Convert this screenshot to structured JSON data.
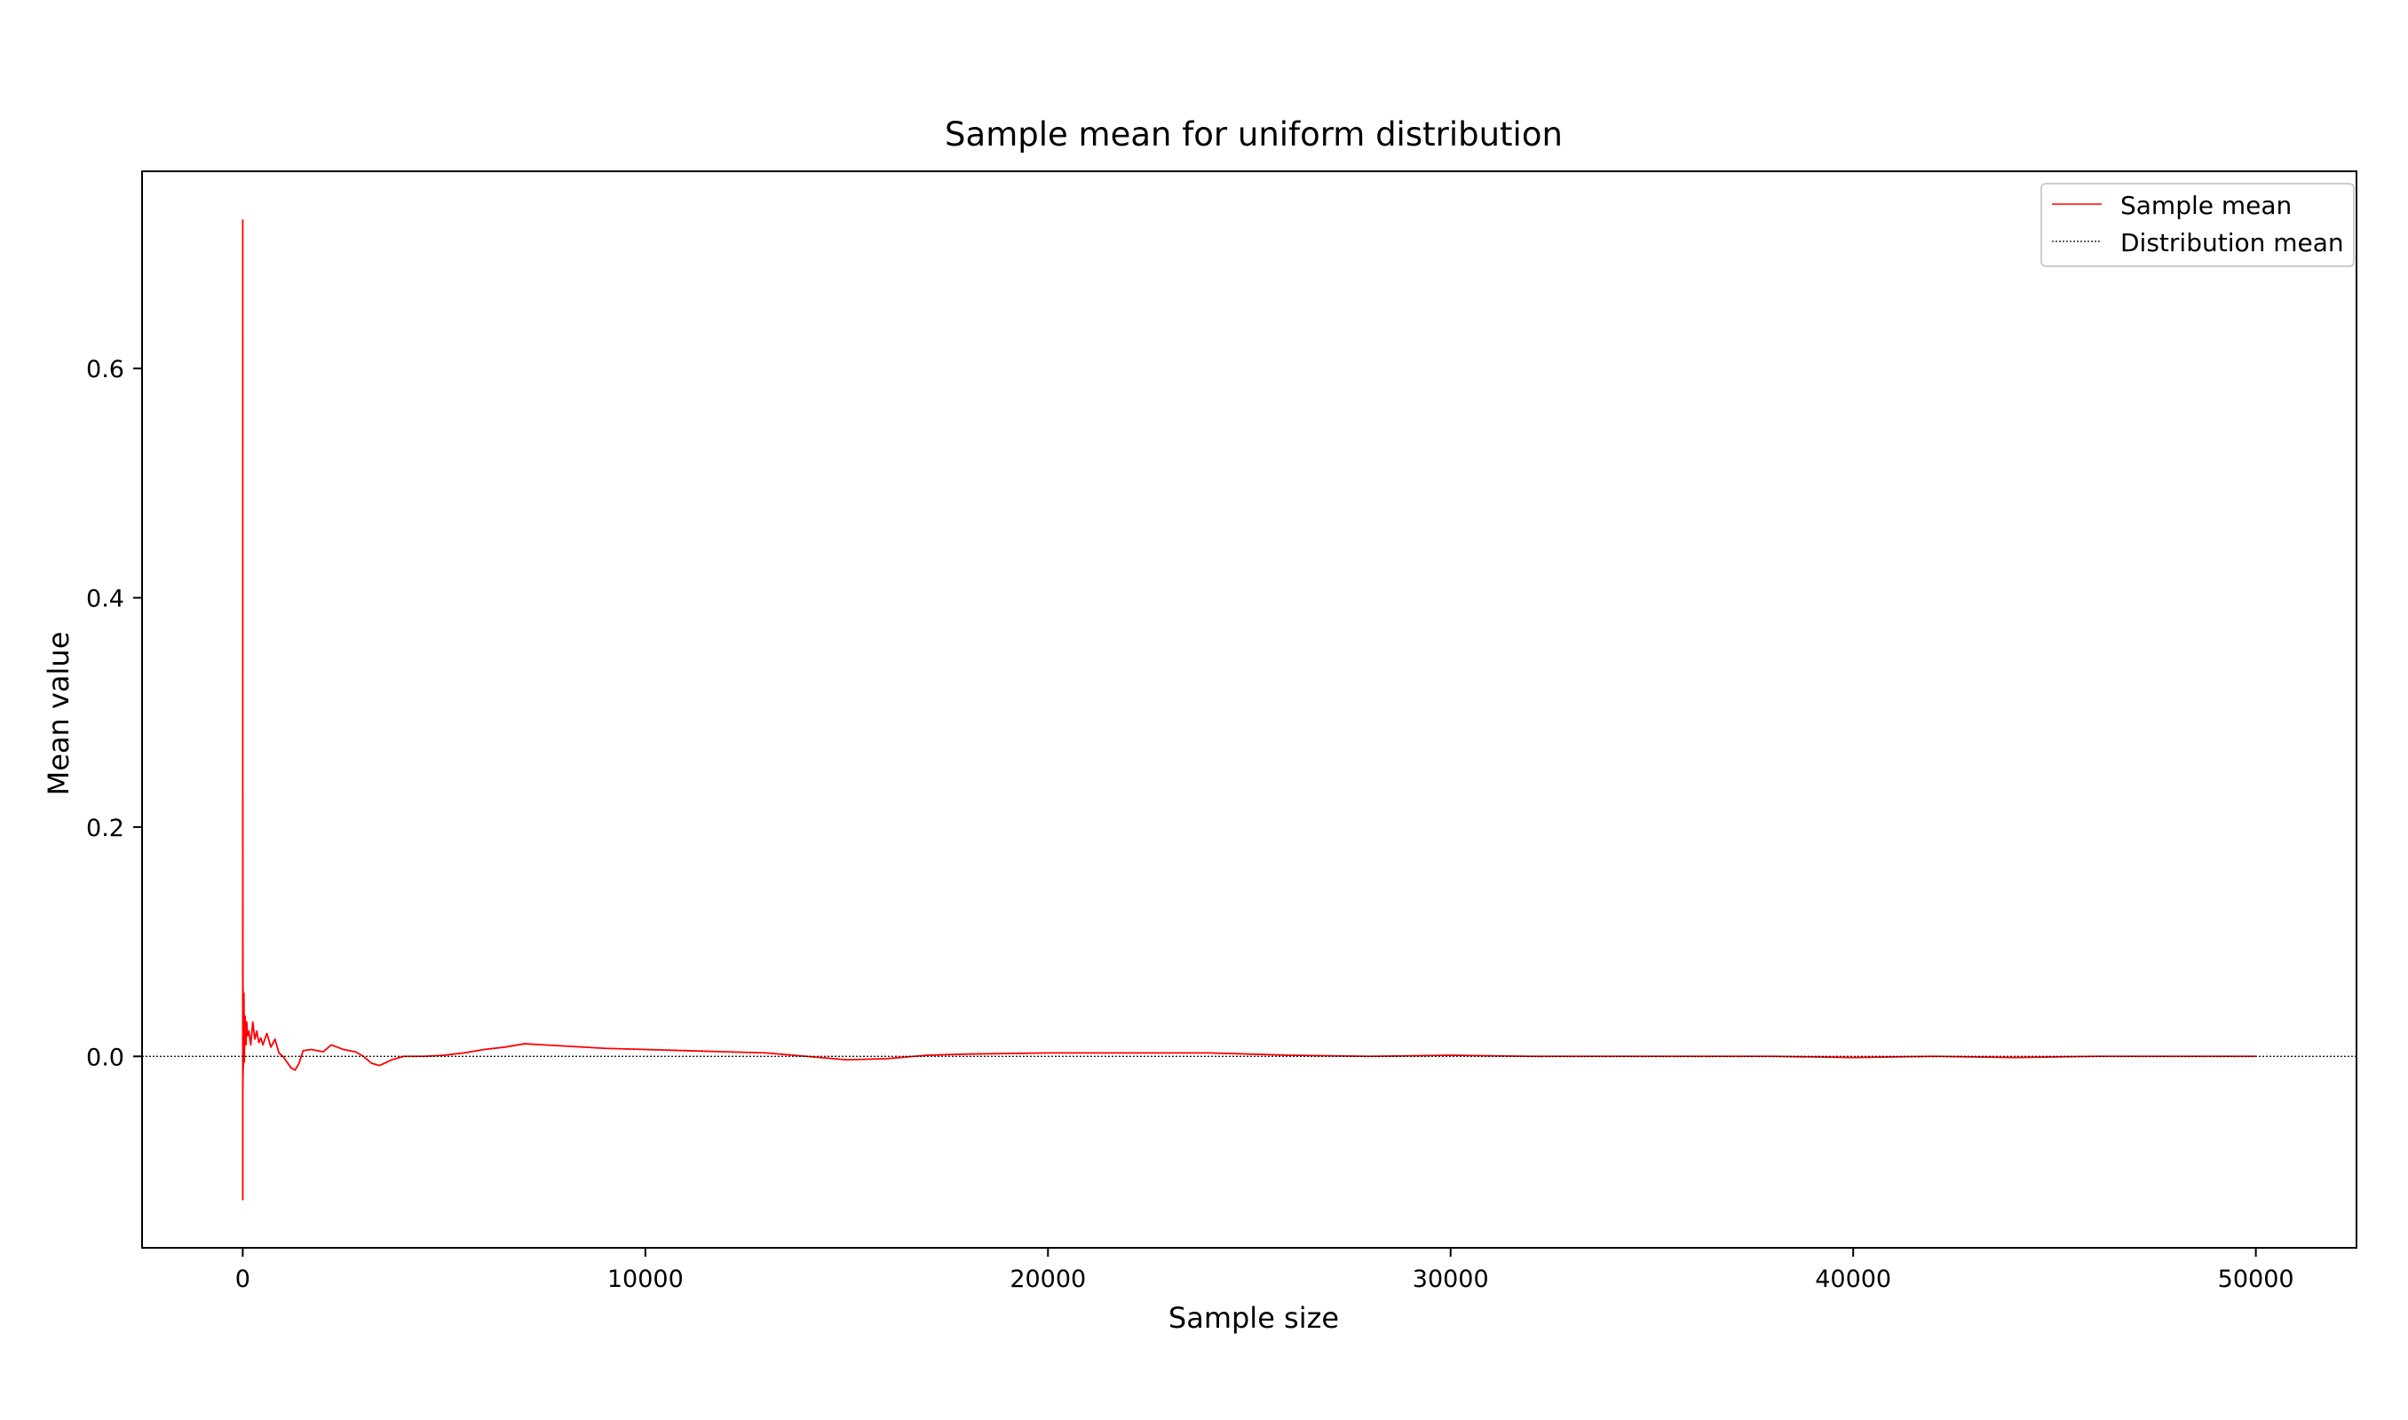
{
  "chart_data": {
    "type": "line",
    "title": "Sample mean for uniform distribution",
    "xlabel": "Sample size",
    "ylabel": "Mean value",
    "xlim": [
      -2500,
      52500
    ],
    "ylim": [
      -0.167,
      0.772
    ],
    "xticks": [
      0,
      10000,
      20000,
      30000,
      40000,
      50000
    ],
    "xtick_labels": [
      "0",
      "10000",
      "20000",
      "30000",
      "40000",
      "50000"
    ],
    "yticks": [
      0.0,
      0.2,
      0.4,
      0.6
    ],
    "ytick_labels": [
      "0.0",
      "0.2",
      "0.4",
      "0.6"
    ],
    "grid": false,
    "legend": {
      "placement": "top-right",
      "entries": [
        "Sample mean",
        "Distribution mean"
      ]
    },
    "series": [
      {
        "name": "Sample mean",
        "color": "#ff0000",
        "style": "solid",
        "x": [
          1,
          2,
          3,
          4,
          5,
          6,
          8,
          10,
          12,
          15,
          20,
          25,
          30,
          40,
          50,
          60,
          80,
          100,
          120,
          150,
          200,
          250,
          300,
          350,
          400,
          450,
          500,
          600,
          700,
          800,
          900,
          1000,
          1100,
          1200,
          1300,
          1400,
          1500,
          1700,
          2000,
          2200,
          2500,
          2800,
          3000,
          3200,
          3400,
          3700,
          4000,
          4500,
          5000,
          5500,
          6000,
          6500,
          7000,
          7500,
          8000,
          9000,
          10000,
          11000,
          12000,
          13000,
          14000,
          15000,
          16000,
          17000,
          18000,
          20000,
          22000,
          24000,
          25000,
          26000,
          28000,
          30000,
          32000,
          34000,
          36000,
          38000,
          40000,
          42000,
          44000,
          46000,
          48000,
          50000
        ],
        "values": [
          0.73,
          -0.125,
          0.23,
          -0.03,
          0.095,
          -0.02,
          0.06,
          -0.015,
          0.04,
          -0.01,
          0.03,
          0.005,
          0.055,
          -0.005,
          0.025,
          0.035,
          0.01,
          0.03,
          0.018,
          0.022,
          0.01,
          0.03,
          0.015,
          0.022,
          0.012,
          0.016,
          0.01,
          0.02,
          0.008,
          0.015,
          0.003,
          0.0,
          -0.005,
          -0.01,
          -0.012,
          -0.006,
          0.005,
          0.006,
          0.004,
          0.01,
          0.006,
          0.004,
          0.0,
          -0.006,
          -0.008,
          -0.003,
          0.0,
          0.0,
          0.001,
          0.003,
          0.006,
          0.008,
          0.011,
          0.01,
          0.009,
          0.007,
          0.006,
          0.005,
          0.004,
          0.003,
          0.0,
          -0.003,
          -0.002,
          0.001,
          0.002,
          0.003,
          0.003,
          0.003,
          0.002,
          0.001,
          0.0,
          0.001,
          0.0,
          0.0,
          0.0,
          0.0,
          -0.001,
          0.0,
          -0.001,
          0.0,
          0.0,
          0.0
        ]
      },
      {
        "name": "Distribution mean",
        "color": "#000000",
        "style": "dotted",
        "x": [
          -2500,
          52500
        ],
        "values": [
          0.0,
          0.0
        ]
      }
    ]
  }
}
